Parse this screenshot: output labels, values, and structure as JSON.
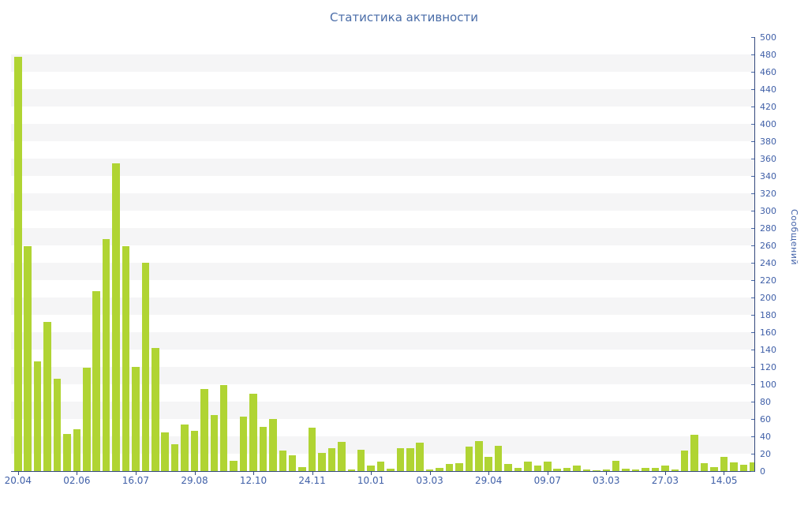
{
  "title": "Статистика активности",
  "y_axis": {
    "label": "Сообщений",
    "min": 0,
    "max": 500,
    "step": 20,
    "side": "right"
  },
  "x_axis": {
    "tick_labels": [
      "20.04",
      "02.06",
      "16.07",
      "29.08",
      "12.10",
      "24.11",
      "10.01",
      "03.03",
      "29.04",
      "09.07",
      "03.03",
      "27.03",
      "14.05"
    ],
    "tick_every_bars": 6
  },
  "chart_data": {
    "type": "bar",
    "title": "Статистика активности",
    "xlabel": "",
    "ylabel": "Сообщений",
    "ylim": [
      0,
      500
    ],
    "y_tick_step": 20,
    "grid": "alternating horizontal stripes",
    "legend": "none",
    "y_axis_side": "right",
    "x_tick_labels": [
      "20.04",
      "02.06",
      "16.07",
      "29.08",
      "12.10",
      "24.11",
      "10.01",
      "03.03",
      "29.04",
      "09.07",
      "03.03",
      "27.03",
      "14.05"
    ],
    "x_tick_bar_indices": [
      1,
      7,
      13,
      19,
      25,
      31,
      37,
      43,
      49,
      55,
      61,
      67,
      73
    ],
    "values": [
      477,
      259,
      126,
      172,
      106,
      43,
      48,
      119,
      207,
      267,
      355,
      259,
      120,
      240,
      142,
      45,
      31,
      54,
      46,
      95,
      65,
      99,
      12,
      63,
      89,
      51,
      60,
      24,
      18,
      5,
      50,
      21,
      26,
      34,
      2,
      25,
      6,
      11,
      3,
      26,
      26,
      33,
      2,
      4,
      8,
      9,
      28,
      35,
      16,
      29,
      8,
      4,
      11,
      6,
      11,
      3,
      4,
      6,
      2,
      1,
      2,
      12,
      3,
      2,
      4,
      4,
      6,
      2,
      24,
      42,
      9,
      5,
      16,
      10,
      7,
      10
    ]
  },
  "colors": {
    "bar": "#b0d433",
    "stripe": "#f5f5f6",
    "axis_line": "#34497d",
    "tick_label": "#4060a8",
    "title": "#4a6da8",
    "background": "#ffffff"
  }
}
